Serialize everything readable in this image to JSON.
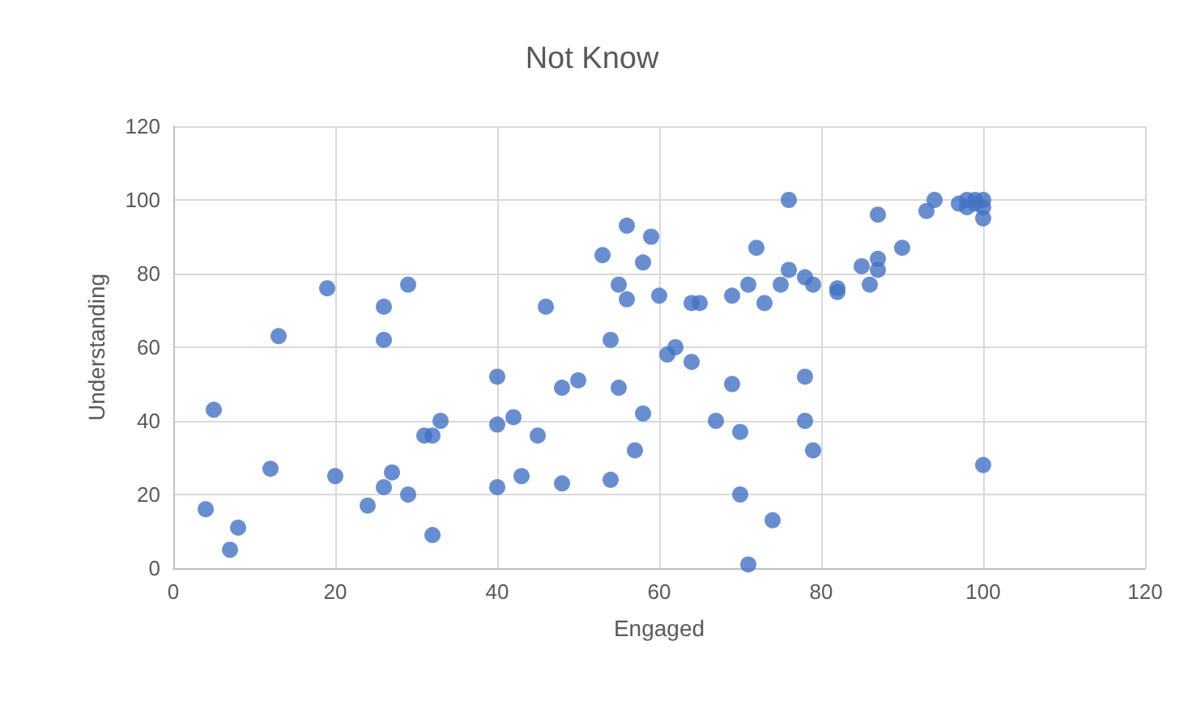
{
  "chart_data": {
    "type": "scatter",
    "title": "Not Know",
    "xlabel": "Engaged",
    "ylabel": "Understanding",
    "color": "#4472c4",
    "marker": "circle",
    "grid": true,
    "xlim": [
      0,
      120
    ],
    "xticks": [
      0,
      20,
      40,
      60,
      80,
      100,
      120
    ],
    "ylim": [
      0,
      120
    ],
    "yticks": [
      0,
      20,
      40,
      60,
      80,
      100,
      120
    ],
    "x": [
      4,
      5,
      7,
      8,
      12,
      13,
      19,
      20,
      24,
      26,
      26,
      26,
      27,
      29,
      29,
      31,
      32,
      32,
      33,
      40,
      40,
      40,
      42,
      43,
      45,
      46,
      48,
      48,
      50,
      53,
      54,
      54,
      55,
      55,
      56,
      56,
      57,
      58,
      58,
      59,
      60,
      61,
      62,
      64,
      64,
      65,
      67,
      69,
      69,
      70,
      70,
      71,
      71,
      72,
      73,
      74,
      75,
      76,
      76,
      78,
      78,
      78,
      79,
      79,
      82,
      82,
      85,
      86,
      87,
      87,
      87,
      90,
      93,
      94,
      97,
      98,
      98,
      99,
      99,
      100,
      100,
      100,
      100
    ],
    "values": [
      16,
      43,
      5,
      11,
      27,
      63,
      76,
      25,
      17,
      71,
      62,
      22,
      26,
      77,
      20,
      36,
      36,
      9,
      40,
      52,
      39,
      22,
      41,
      25,
      36,
      71,
      49,
      23,
      51,
      85,
      62,
      24,
      77,
      49,
      93,
      73,
      32,
      83,
      42,
      90,
      74,
      58,
      60,
      72,
      56,
      72,
      40,
      74,
      50,
      37,
      20,
      77,
      1,
      87,
      72,
      13,
      77,
      100,
      81,
      79,
      52,
      40,
      77,
      32,
      75,
      76,
      82,
      77,
      84,
      81,
      96,
      87,
      97,
      100,
      99,
      100,
      98,
      100,
      99,
      100,
      98,
      95,
      28
    ]
  }
}
